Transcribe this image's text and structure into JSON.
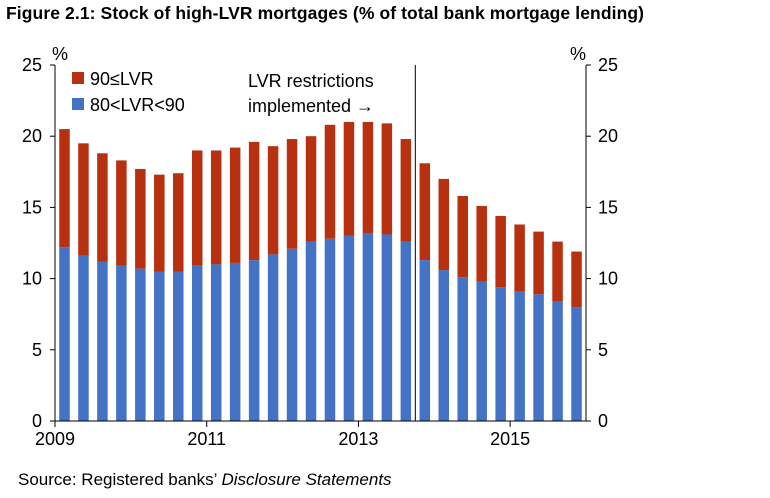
{
  "title": "Figure 2.1: Stock of high-LVR mortgages (% of total bank mortgage lending)",
  "source": {
    "prefix": "Source: Registered banks’ ",
    "italic": "Disclosure Statements"
  },
  "chart_data": {
    "type": "bar",
    "stacked": true,
    "unit_left": "%",
    "unit_right": "%",
    "ylim": [
      0,
      25
    ],
    "yticks": [
      0,
      5,
      10,
      15,
      20,
      25
    ],
    "xtick_labels": [
      {
        "label": "2009",
        "index": 0
      },
      {
        "label": "2011",
        "index": 8
      },
      {
        "label": "2013",
        "index": 16
      },
      {
        "label": "2015",
        "index": 24
      }
    ],
    "series": [
      {
        "name": "80<LVR<90",
        "color": "#4472C4",
        "values": [
          12.2,
          11.6,
          11.2,
          10.9,
          10.7,
          10.5,
          10.5,
          10.9,
          11.0,
          11.1,
          11.3,
          11.7,
          12.1,
          12.6,
          12.8,
          13.0,
          13.2,
          13.1,
          12.6,
          11.3,
          10.6,
          10.1,
          9.8,
          9.4,
          9.1,
          8.9,
          8.4,
          8.0
        ]
      },
      {
        "name": "90≤LVR",
        "color": "#B7300F",
        "values": [
          8.3,
          7.9,
          7.6,
          7.4,
          7.0,
          6.8,
          6.9,
          8.1,
          8.0,
          8.1,
          8.3,
          7.6,
          7.7,
          7.4,
          8.0,
          8.0,
          7.8,
          7.8,
          7.2,
          6.8,
          6.4,
          5.7,
          5.3,
          5.0,
          4.7,
          4.4,
          4.2,
          3.9
        ]
      }
    ],
    "annotation": {
      "lines": [
        "LVR restrictions",
        "implemented →"
      ],
      "after_index": 18
    },
    "legend": {
      "placement": "top-left"
    },
    "grid": false
  }
}
